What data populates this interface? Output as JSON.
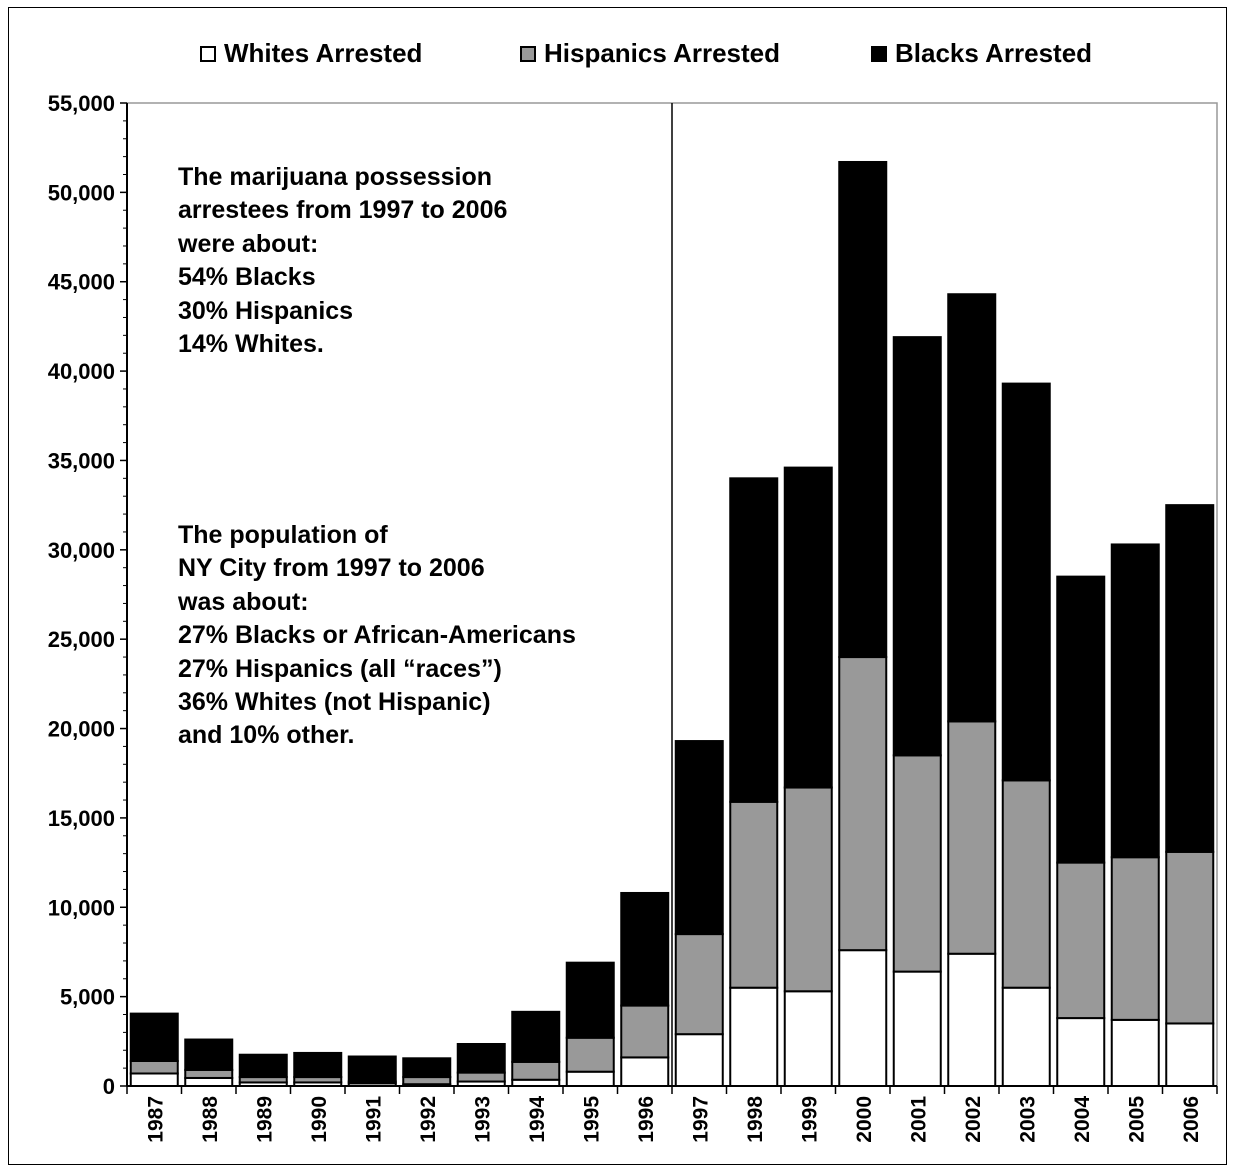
{
  "chart_data": {
    "type": "bar",
    "stacked": true,
    "categories": [
      "1987",
      "1988",
      "1989",
      "1990",
      "1991",
      "1992",
      "1993",
      "1994",
      "1995",
      "1996",
      "1997",
      "1998",
      "1999",
      "2000",
      "2001",
      "2002",
      "2003",
      "2004",
      "2005",
      "2006"
    ],
    "series": [
      {
        "name": "Whites  Arrested",
        "color": "#ffffff",
        "values": [
          700,
          450,
          200,
          200,
          150,
          100,
          250,
          350,
          800,
          1600,
          2900,
          5500,
          5300,
          7600,
          6400,
          7400,
          5500,
          3800,
          3700,
          3500
        ]
      },
      {
        "name": "Hispanics Arrested",
        "color": "#999999",
        "values": [
          700,
          450,
          300,
          300,
          100,
          400,
          500,
          1000,
          1900,
          2900,
          5600,
          10400,
          11400,
          16400,
          12100,
          13000,
          11600,
          8700,
          9100,
          9600
        ]
      },
      {
        "name": "Blacks Arrested",
        "color": "#000000",
        "values": [
          2650,
          1700,
          1250,
          1350,
          1400,
          1050,
          1600,
          2800,
          4200,
          6300,
          10800,
          18100,
          17900,
          27700,
          23400,
          23900,
          22200,
          16000,
          17500,
          19400
        ]
      }
    ],
    "y_ticks": [
      "0",
      "5,000",
      "10,000",
      "15,000",
      "20,000",
      "25,000",
      "30,000",
      "35,000",
      "40,000",
      "45,000",
      "50,000",
      "55,000"
    ],
    "ylim": [
      0,
      55000
    ],
    "legend_position": "top",
    "grid": false,
    "divider_after_category": "1996",
    "annotations": [
      [
        "The marijuana possession",
        "arrestees from 1997 to 2006",
        "were about:",
        "54% Blacks",
        "30% Hispanics",
        "14% Whites."
      ],
      [
        "The population of",
        "NY City from 1997 to 2006",
        "was about:",
        "27% Blacks or African-Americans",
        "27% Hispanics (all “races”)",
        "36% Whites (not Hispanic)",
        "and 10% other."
      ]
    ]
  }
}
